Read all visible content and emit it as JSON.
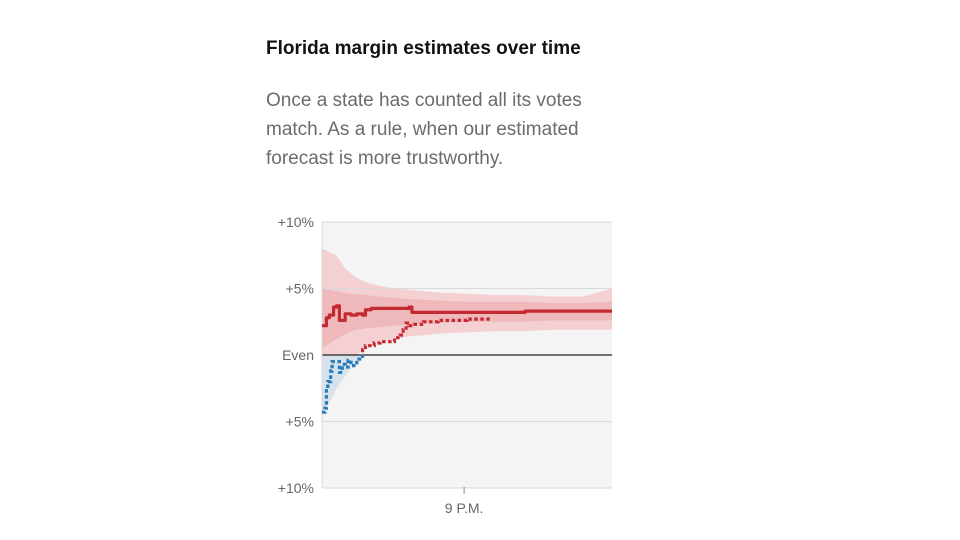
{
  "header": {
    "title": "Florida margin estimates over time",
    "description_lines": [
      "Once a state has counted all its votes",
      "match. As a rule, when our estimated",
      "forecast is more trustworthy."
    ]
  },
  "chart_data": {
    "type": "line",
    "title": "Florida margin estimates over time",
    "xlabel": "",
    "ylabel": "",
    "x_tick_labels": [
      "9 P.M."
    ],
    "y_tick_labels": [
      "+10%",
      "+5%",
      "Even",
      "+5%",
      "+10%"
    ],
    "y_tick_values": [
      10,
      5,
      0,
      -5,
      -10
    ],
    "ylim": [
      -10,
      10
    ],
    "xlim": [
      0,
      1
    ],
    "x_tick_positions": [
      0.49
    ],
    "grid": true,
    "colors": {
      "republican": "#c42a32",
      "democrat": "#2a7bb8",
      "band_outer": "#f4d0d2",
      "band_inner": "#ecaeb1",
      "band_blue": "#d3e4ef",
      "plot_bg": "#f4f4f4",
      "grid": "#d9d9d9",
      "zero_line": "#222222",
      "tick_text": "#666666"
    },
    "band_outer": {
      "x": [
        0.0,
        0.02,
        0.05,
        0.08,
        0.12,
        0.16,
        0.2,
        0.25,
        0.3,
        0.35,
        0.4,
        0.5,
        0.6,
        0.7,
        0.8,
        0.9,
        1.0
      ],
      "upper": [
        8.0,
        7.8,
        7.5,
        6.5,
        5.8,
        5.4,
        5.2,
        5.0,
        4.9,
        4.8,
        4.7,
        4.6,
        4.5,
        4.5,
        4.4,
        4.4,
        5.0
      ],
      "lower": [
        -4.5,
        -3.8,
        -2.5,
        -1.0,
        0.0,
        0.8,
        1.0,
        1.2,
        1.4,
        1.5,
        1.6,
        1.7,
        1.8,
        1.8,
        1.9,
        1.9,
        1.9
      ]
    },
    "band_inner": {
      "x": [
        0.0,
        0.05,
        0.1,
        0.15,
        0.2,
        0.25,
        0.3,
        0.4,
        0.5,
        0.6,
        0.7,
        0.8,
        0.9,
        1.0
      ],
      "upper": [
        5.0,
        4.8,
        4.6,
        4.5,
        4.4,
        4.3,
        4.2,
        4.1,
        4.0,
        4.0,
        4.0,
        3.9,
        3.9,
        4.0
      ],
      "lower": [
        0.5,
        1.2,
        1.8,
        2.0,
        2.1,
        2.2,
        2.3,
        2.4,
        2.5,
        2.5,
        2.5,
        2.6,
        2.6,
        2.6
      ]
    },
    "band_blue": {
      "x": [
        0.0,
        0.05,
        0.1,
        0.13
      ],
      "upper": [
        0.0,
        0.0,
        0.0,
        0.0
      ],
      "lower": [
        -4.5,
        -2.5,
        -1.0,
        0.0
      ]
    },
    "series": [
      {
        "style": "solid",
        "x": [
          0.0,
          0.015,
          0.025,
          0.04,
          0.05,
          0.06,
          0.07,
          0.08,
          0.1,
          0.12,
          0.14,
          0.15,
          0.17,
          0.2,
          0.25,
          0.3,
          0.31,
          0.35,
          0.4,
          0.5,
          0.6,
          0.7,
          0.8,
          0.9,
          1.0
        ],
        "y": [
          2.2,
          2.8,
          3.0,
          3.6,
          3.7,
          2.6,
          2.6,
          3.1,
          3.0,
          3.1,
          3.0,
          3.4,
          3.5,
          3.5,
          3.5,
          3.6,
          3.2,
          3.2,
          3.2,
          3.2,
          3.2,
          3.3,
          3.3,
          3.3,
          3.3
        ]
      },
      {
        "style": "dotted",
        "x": [
          0.0,
          0.01,
          0.015,
          0.02,
          0.03,
          0.035,
          0.05,
          0.06,
          0.07,
          0.08,
          0.09,
          0.1,
          0.11,
          0.12,
          0.13,
          0.14,
          0.15,
          0.16,
          0.18,
          0.2,
          0.23,
          0.25,
          0.27,
          0.28,
          0.29,
          0.3,
          0.32,
          0.35,
          0.4,
          0.5,
          0.58
        ],
        "y": [
          -4.3,
          -4.0,
          -2.5,
          -2.0,
          -1.2,
          -0.5,
          -0.5,
          -1.3,
          -0.7,
          -0.9,
          -0.4,
          -0.8,
          -0.8,
          -0.3,
          -0.1,
          0.4,
          0.7,
          0.7,
          0.9,
          1.0,
          1.0,
          1.3,
          1.5,
          1.9,
          2.4,
          2.2,
          2.3,
          2.5,
          2.6,
          2.7,
          2.8
        ]
      }
    ]
  }
}
